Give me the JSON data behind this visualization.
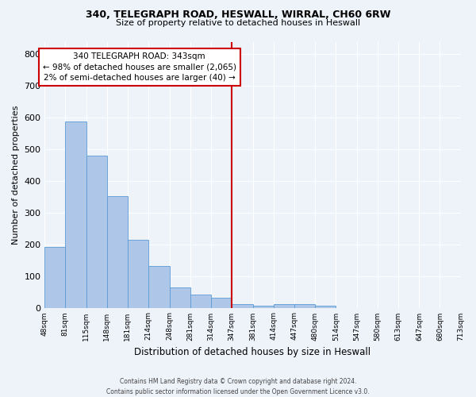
{
  "title_line1": "340, TELEGRAPH ROAD, HESWALL, WIRRAL, CH60 6RW",
  "title_line2": "Size of property relative to detached houses in Heswall",
  "xlabel": "Distribution of detached houses by size in Heswall",
  "ylabel": "Number of detached properties",
  "footnote": "Contains HM Land Registry data © Crown copyright and database right 2024.\nContains public sector information licensed under the Open Government Licence v3.0.",
  "bar_left_edges": [
    48,
    81,
    115,
    148,
    181,
    214,
    248,
    281,
    314,
    347,
    381,
    414,
    447,
    480,
    514,
    547,
    580,
    613,
    647,
    680
  ],
  "bar_widths": [
    33,
    34,
    33,
    33,
    33,
    34,
    33,
    33,
    33,
    34,
    33,
    33,
    33,
    34,
    33,
    33,
    33,
    34,
    33,
    33
  ],
  "bar_heights": [
    193,
    588,
    480,
    354,
    215,
    132,
    65,
    44,
    33,
    14,
    8,
    12,
    12,
    8,
    0,
    0,
    0,
    0,
    0,
    0
  ],
  "bar_color": "#aec6e8",
  "bar_edgecolor": "#5b9bd5",
  "vline_x": 347,
  "vline_color": "#cc0000",
  "annotation_title": "340 TELEGRAPH ROAD: 343sqm",
  "annotation_line2": "← 98% of detached houses are smaller (2,065)",
  "annotation_line3": "2% of semi-detached houses are larger (40) →",
  "annotation_box_color": "#cc0000",
  "ylim": [
    0,
    840
  ],
  "yticks": [
    0,
    100,
    200,
    300,
    400,
    500,
    600,
    700,
    800
  ],
  "xlim_left": 48,
  "xlim_right": 713,
  "tick_labels": [
    "48sqm",
    "81sqm",
    "115sqm",
    "148sqm",
    "181sqm",
    "214sqm",
    "248sqm",
    "281sqm",
    "314sqm",
    "347sqm",
    "381sqm",
    "414sqm",
    "447sqm",
    "480sqm",
    "514sqm",
    "547sqm",
    "580sqm",
    "613sqm",
    "647sqm",
    "680sqm",
    "713sqm"
  ],
  "background_color": "#eef2f9",
  "grid_color": "#ffffff",
  "title1_fontsize": 9.0,
  "title2_fontsize": 8.0,
  "ylabel_fontsize": 8.0,
  "xlabel_fontsize": 8.5,
  "tick_fontsize": 6.5,
  "ytick_fontsize": 8.0,
  "annotation_fontsize": 7.5
}
